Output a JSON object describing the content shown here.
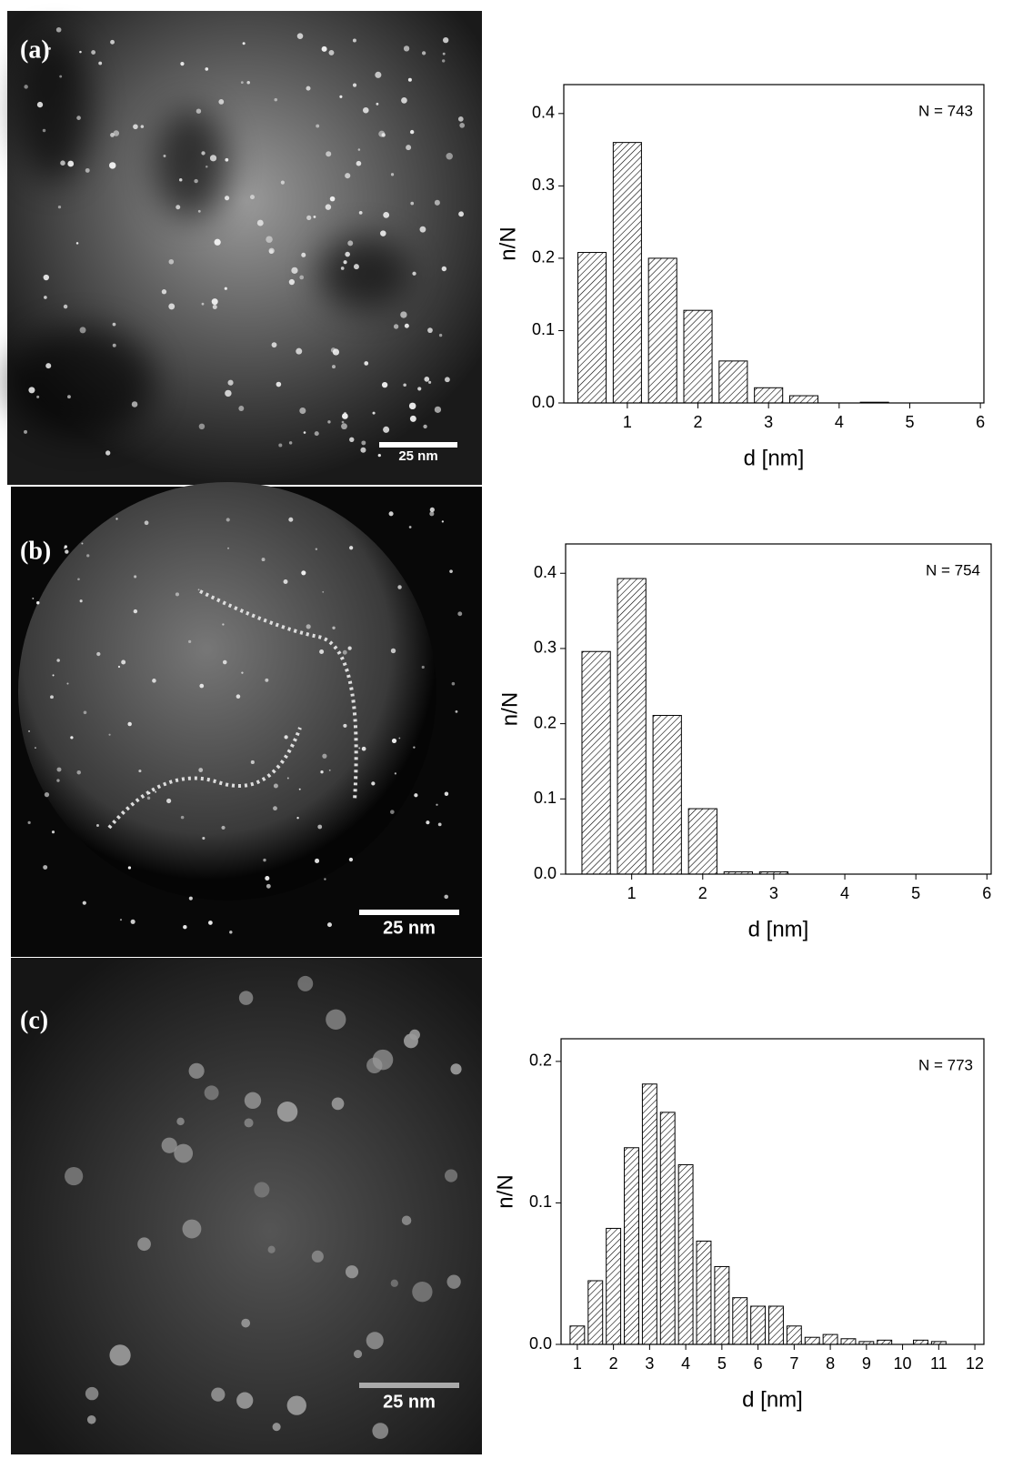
{
  "images": [
    {
      "label": "(a)",
      "scale_bar": "25 nm"
    },
    {
      "label": "(b)",
      "scale_bar": "25 nm"
    },
    {
      "label": "(c)",
      "scale_bar": "25 nm"
    }
  ],
  "chart_data": [
    {
      "type": "bar",
      "annotation": "N = 743",
      "x_label": "d [nm]",
      "y_label": "n/N",
      "x": [
        0.5,
        1.0,
        1.5,
        2.0,
        2.5,
        3.0,
        3.5,
        4.0,
        4.5
      ],
      "values": [
        0.208,
        0.36,
        0.2,
        0.128,
        0.058,
        0.021,
        0.01,
        0,
        0.001
      ],
      "xlim": [
        0.1,
        6.05
      ],
      "xticks": [
        1,
        2,
        3,
        4,
        5,
        6
      ],
      "ylim": [
        0,
        0.44
      ],
      "yticks": [
        {
          "value": 0,
          "label": "0.0"
        },
        0.1,
        0.2,
        0.3,
        0.4
      ]
    },
    {
      "type": "bar",
      "annotation": "N = 754",
      "x_label": "d [nm]",
      "y_label": "n/N",
      "x": [
        0.5,
        1.0,
        1.5,
        2.0,
        2.5,
        3.0
      ],
      "values": [
        0.296,
        0.393,
        0.211,
        0.087,
        0.003,
        0.003
      ],
      "xlim": [
        0.07,
        6.06
      ],
      "xticks": [
        1,
        2,
        3,
        4,
        5,
        6
      ],
      "ylim": [
        0,
        0.439
      ],
      "yticks": [
        {
          "value": 0,
          "label": "0.0"
        },
        0.1,
        0.2,
        0.3,
        0.4
      ]
    },
    {
      "type": "bar",
      "annotation": "N = 773",
      "x_label": "d [nm]",
      "y_label": "n/N",
      "x": [
        1.0,
        1.5,
        2.0,
        2.5,
        3.0,
        3.5,
        4.0,
        4.5,
        5.0,
        5.5,
        6.0,
        6.5,
        7.0,
        7.5,
        8.0,
        8.5,
        9.0,
        9.5,
        10.0,
        10.5,
        11.0
      ],
      "values": [
        0.013,
        0.045,
        0.082,
        0.139,
        0.184,
        0.164,
        0.127,
        0.073,
        0.055,
        0.033,
        0.027,
        0.027,
        0.013,
        0.005,
        0.007,
        0.004,
        0.002,
        0.003,
        0,
        0.003,
        0.002
      ],
      "xlim": [
        0.55,
        12.25
      ],
      "xticks": [
        1,
        2,
        3,
        4,
        5,
        6,
        7,
        8,
        9,
        10,
        11,
        12
      ],
      "ylim": [
        0,
        0.216
      ],
      "yticks": [
        {
          "value": 0,
          "label": "0.0"
        },
        0.1,
        0.2
      ]
    }
  ]
}
